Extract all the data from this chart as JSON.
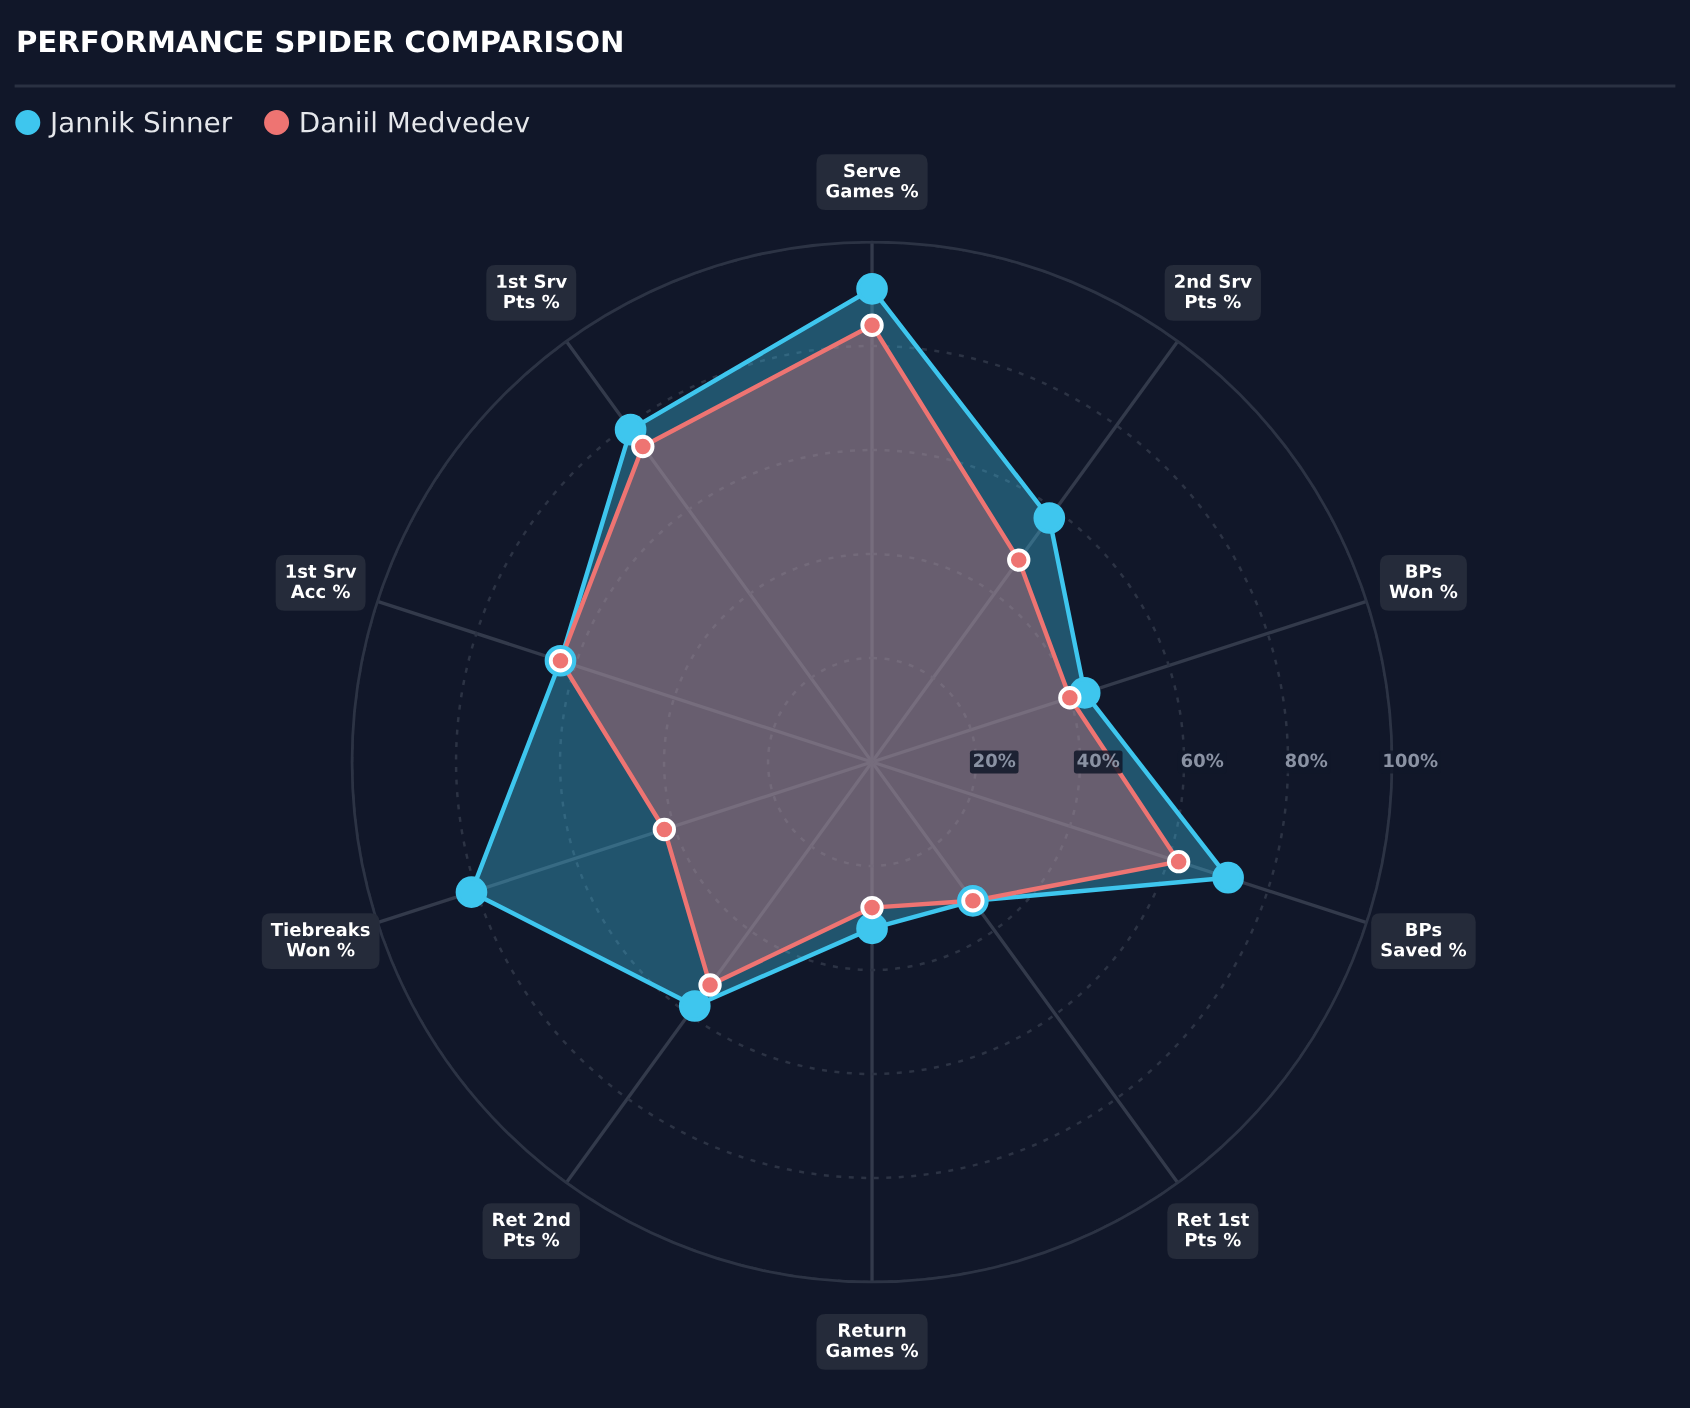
{
  "chart_data": {
    "type": "radar",
    "title": "PERFORMANCE SPIDER COMPARISON",
    "categories": [
      "Serve\nGames %",
      "2nd Srv\nPts %",
      "BPs\nWon %",
      "BPs\nSaved %",
      "Ret 1st\nPts %",
      "Return\nGames %",
      "Ret 2nd\nPts %",
      "Tiebreaks\nWon %",
      "1st Srv\nAcc %",
      "1st Srv\nPts %"
    ],
    "series": [
      {
        "name": "Jannik Sinner",
        "color": "#3ec6ee",
        "values": [
          91,
          58,
          43,
          72,
          33,
          32,
          58,
          81,
          63,
          79
        ]
      },
      {
        "name": "Daniil Medvedev",
        "color": "#ee7472",
        "values": [
          84,
          48,
          40,
          62,
          33,
          28,
          53,
          42,
          63,
          75
        ]
      }
    ],
    "ylim": [
      0,
      100
    ],
    "yticks": [
      {
        "value": 20,
        "label": "20%"
      },
      {
        "value": 40,
        "label": "40%"
      },
      {
        "value": 60,
        "label": "60%"
      },
      {
        "value": 80,
        "label": "80%"
      },
      {
        "value": 100,
        "label": "100%"
      }
    ],
    "grid": true,
    "legend": "top left",
    "marker": "circle"
  }
}
